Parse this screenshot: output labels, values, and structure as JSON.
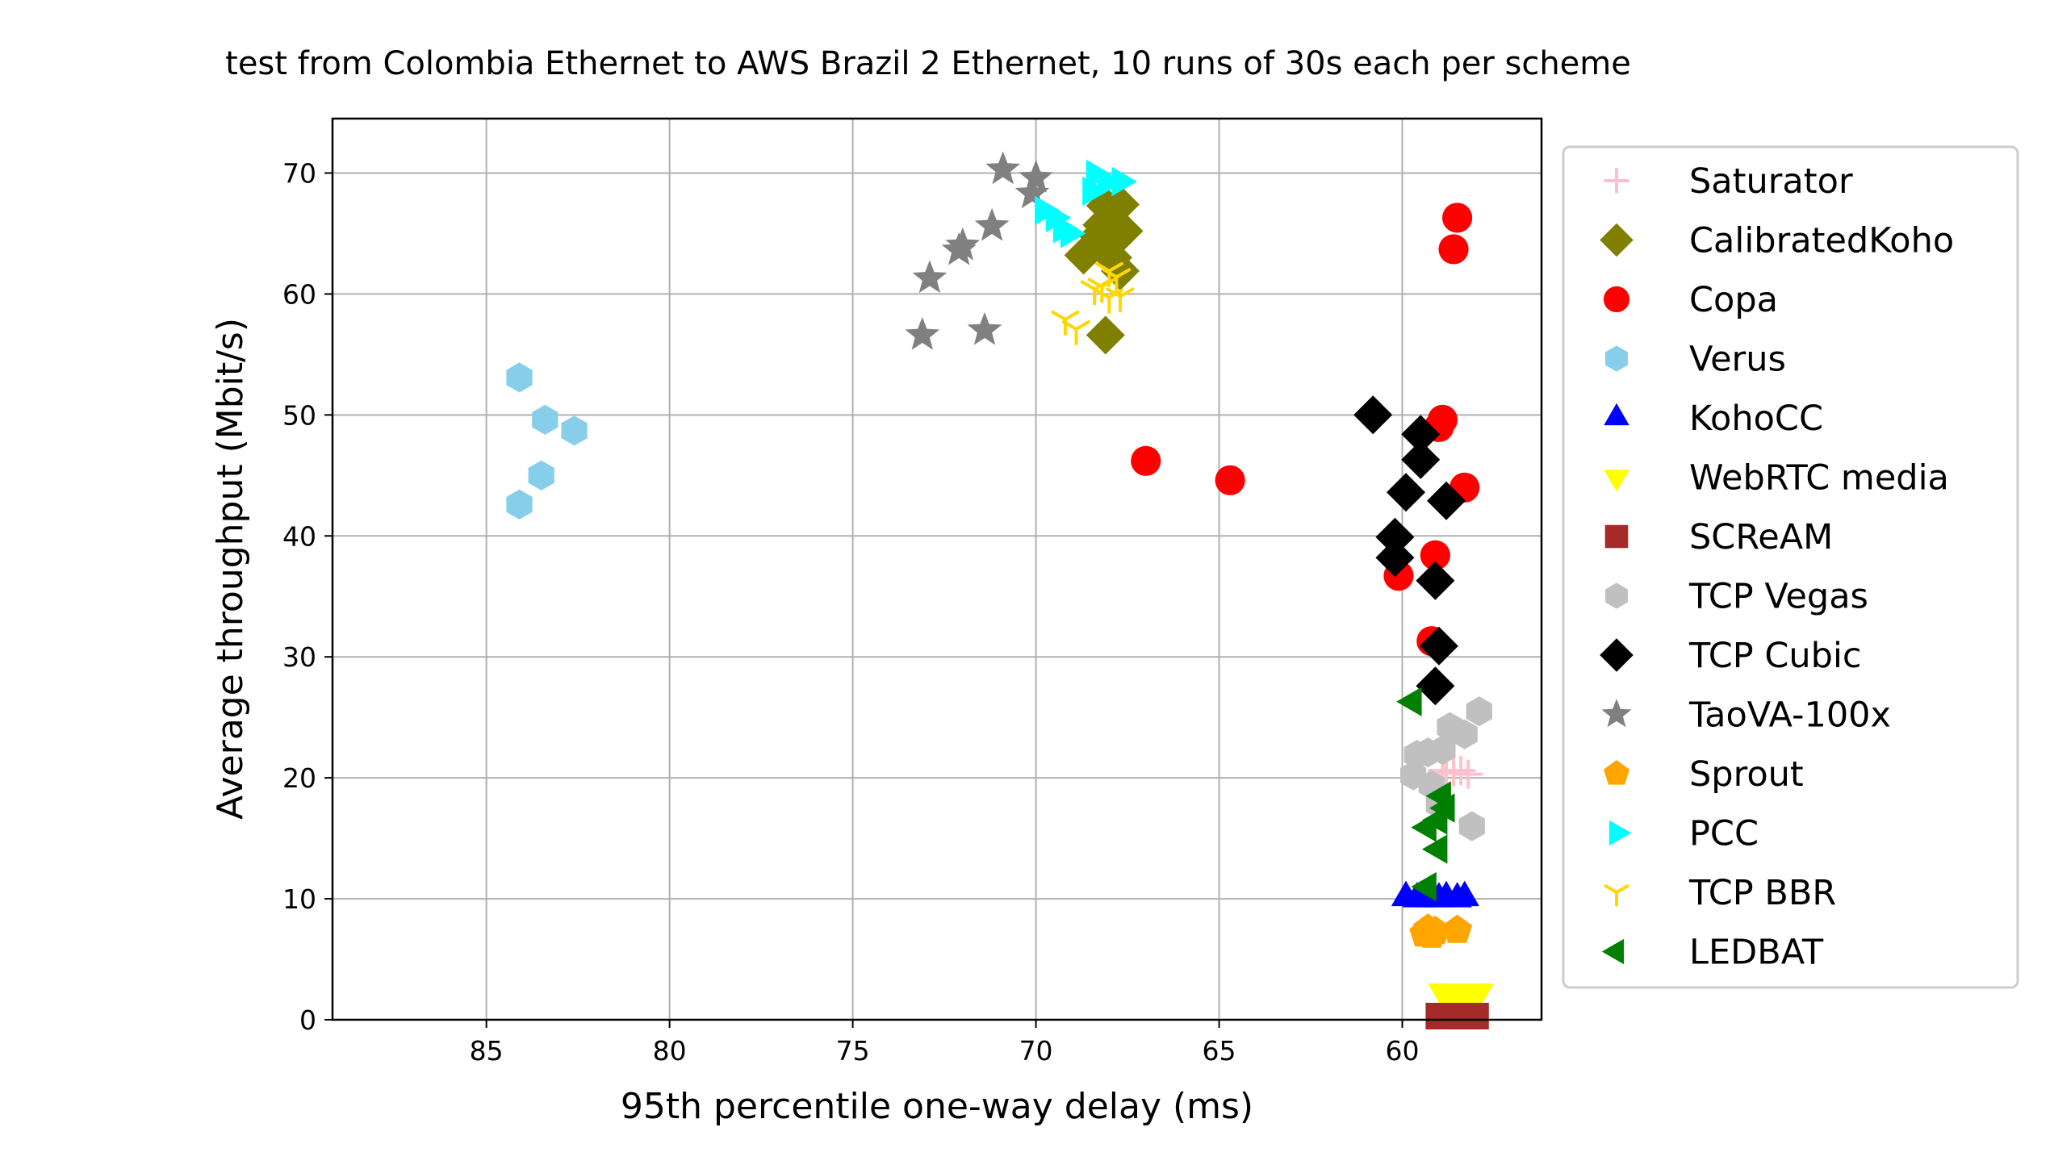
{
  "chart_data": {
    "type": "scatter",
    "title": "test from Colombia Ethernet to AWS Brazil 2 Ethernet, 10 runs of 30s each per scheme",
    "xlabel": "95th percentile one-way delay (ms)",
    "ylabel": "Average throughput (Mbit/s)",
    "xlim": [
      89.2,
      56.2
    ],
    "ylim": [
      0,
      74.5
    ],
    "x_inverted": true,
    "grid": true,
    "legend_position": "right, outside plot",
    "xticks": [
      85,
      80,
      75,
      70,
      65,
      60
    ],
    "yticks": [
      0,
      10,
      20,
      30,
      40,
      50,
      60,
      70
    ],
    "series": [
      {
        "name": "Saturator",
        "marker": "plus",
        "color": "#ffc0cb",
        "points": [
          [
            58.9,
            20.6
          ],
          [
            58.6,
            20.5
          ],
          [
            58.2,
            20.3
          ],
          [
            58.8,
            20.4
          ],
          [
            58.4,
            20.6
          ]
        ]
      },
      {
        "name": "CalibratedKoho",
        "marker": "diamond",
        "color": "#808000",
        "points": [
          [
            68.1,
            67.3
          ],
          [
            67.7,
            67.4
          ],
          [
            68.2,
            65.7
          ],
          [
            67.9,
            64.9
          ],
          [
            67.6,
            65.2
          ],
          [
            68.3,
            64.8
          ],
          [
            67.9,
            63.0
          ],
          [
            68.7,
            63.2
          ],
          [
            67.7,
            61.9
          ],
          [
            68.1,
            56.6
          ]
        ]
      },
      {
        "name": "Copa",
        "marker": "circle",
        "color": "#ff0000",
        "points": [
          [
            58.5,
            66.3
          ],
          [
            58.6,
            63.7
          ],
          [
            58.9,
            49.6
          ],
          [
            59.0,
            49.0
          ],
          [
            58.3,
            44.0
          ],
          [
            67.0,
            46.2
          ],
          [
            64.7,
            44.6
          ],
          [
            59.1,
            38.4
          ],
          [
            60.1,
            36.7
          ],
          [
            59.2,
            31.3
          ]
        ]
      },
      {
        "name": "Verus",
        "marker": "hexagon",
        "color": "#87ceeb",
        "points": [
          [
            84.1,
            53.1
          ],
          [
            82.6,
            48.7
          ],
          [
            83.4,
            49.6
          ],
          [
            83.5,
            45.0
          ],
          [
            84.1,
            42.6
          ]
        ]
      },
      {
        "name": "KohoCC",
        "marker": "triangle-up",
        "color": "#0000ff",
        "points": [
          [
            59.9,
            10.1
          ],
          [
            59.6,
            10.0
          ],
          [
            59.3,
            10.0
          ],
          [
            59.0,
            10.0
          ],
          [
            58.8,
            10.1
          ],
          [
            58.5,
            10.0
          ],
          [
            58.3,
            10.1
          ],
          [
            59.5,
            10.1
          ]
        ]
      },
      {
        "name": "WebRTC media",
        "marker": "triangle-down",
        "color": "#ffff00",
        "points": [
          [
            58.9,
            2.3
          ],
          [
            58.7,
            2.3
          ],
          [
            58.5,
            2.3
          ],
          [
            58.3,
            2.2
          ],
          [
            58.1,
            2.3
          ],
          [
            57.9,
            2.3
          ]
        ]
      },
      {
        "name": "SCReAM",
        "marker": "square",
        "color": "#a52a2a",
        "points": [
          [
            59.0,
            0.3
          ],
          [
            58.8,
            0.3
          ],
          [
            58.6,
            0.3
          ],
          [
            58.4,
            0.3
          ],
          [
            58.2,
            0.3
          ],
          [
            58.0,
            0.3
          ]
        ]
      },
      {
        "name": "TCP Vegas",
        "marker": "hexagon",
        "color": "#c0c0c0",
        "points": [
          [
            57.9,
            25.5
          ],
          [
            58.7,
            24.2
          ],
          [
            58.3,
            23.6
          ],
          [
            58.9,
            22.3
          ],
          [
            59.3,
            22.1
          ],
          [
            59.6,
            21.9
          ],
          [
            59.7,
            20.2
          ],
          [
            59.0,
            17.8
          ],
          [
            58.1,
            16.0
          ],
          [
            59.2,
            19.4
          ]
        ]
      },
      {
        "name": "TCP Cubic",
        "marker": "diamond",
        "color": "#000000",
        "points": [
          [
            60.8,
            50.0
          ],
          [
            59.5,
            48.4
          ],
          [
            59.5,
            46.3
          ],
          [
            59.9,
            43.6
          ],
          [
            58.8,
            42.9
          ],
          [
            60.2,
            39.9
          ],
          [
            60.2,
            38.2
          ],
          [
            59.1,
            36.3
          ],
          [
            59.0,
            30.9
          ],
          [
            59.1,
            27.6
          ]
        ]
      },
      {
        "name": "TaoVA-100x",
        "marker": "star",
        "color": "#808080",
        "points": [
          [
            70.9,
            70.3
          ],
          [
            70.0,
            69.6
          ],
          [
            70.1,
            68.3
          ],
          [
            71.2,
            65.6
          ],
          [
            72.0,
            64.0
          ],
          [
            72.1,
            63.6
          ],
          [
            72.9,
            61.3
          ],
          [
            73.1,
            56.6
          ],
          [
            71.4,
            57.0
          ]
        ]
      },
      {
        "name": "Sprout",
        "marker": "pentagon",
        "color": "#ffa500",
        "points": [
          [
            59.3,
            7.5
          ],
          [
            59.4,
            7.1
          ],
          [
            59.1,
            7.3
          ],
          [
            58.5,
            7.4
          ],
          [
            59.2,
            7.0
          ]
        ]
      },
      {
        "name": "PCC",
        "marker": "triangle-right",
        "color": "#00ffff",
        "points": [
          [
            68.4,
            69.9
          ],
          [
            68.1,
            69.2
          ],
          [
            67.7,
            69.3
          ],
          [
            68.5,
            68.5
          ],
          [
            69.8,
            66.9
          ],
          [
            69.5,
            66.3
          ],
          [
            69.3,
            65.4
          ],
          [
            69.1,
            65.0
          ]
        ]
      },
      {
        "name": "TCP BBR",
        "marker": "tri-down",
        "color": "#ffd700",
        "points": [
          [
            68.0,
            61.9
          ],
          [
            67.8,
            61.4
          ],
          [
            68.2,
            60.6
          ],
          [
            68.4,
            60.4
          ],
          [
            68.0,
            59.7
          ],
          [
            67.7,
            59.8
          ],
          [
            69.2,
            57.9
          ],
          [
            68.9,
            57.1
          ]
        ]
      },
      {
        "name": "LEDBAT",
        "marker": "triangle-left",
        "color": "#008000",
        "points": [
          [
            59.7,
            26.3
          ],
          [
            58.9,
            18.5
          ],
          [
            58.8,
            17.5
          ],
          [
            59.0,
            16.5
          ],
          [
            59.3,
            15.9
          ],
          [
            59.0,
            14.1
          ],
          [
            59.3,
            11.0
          ]
        ]
      }
    ]
  }
}
